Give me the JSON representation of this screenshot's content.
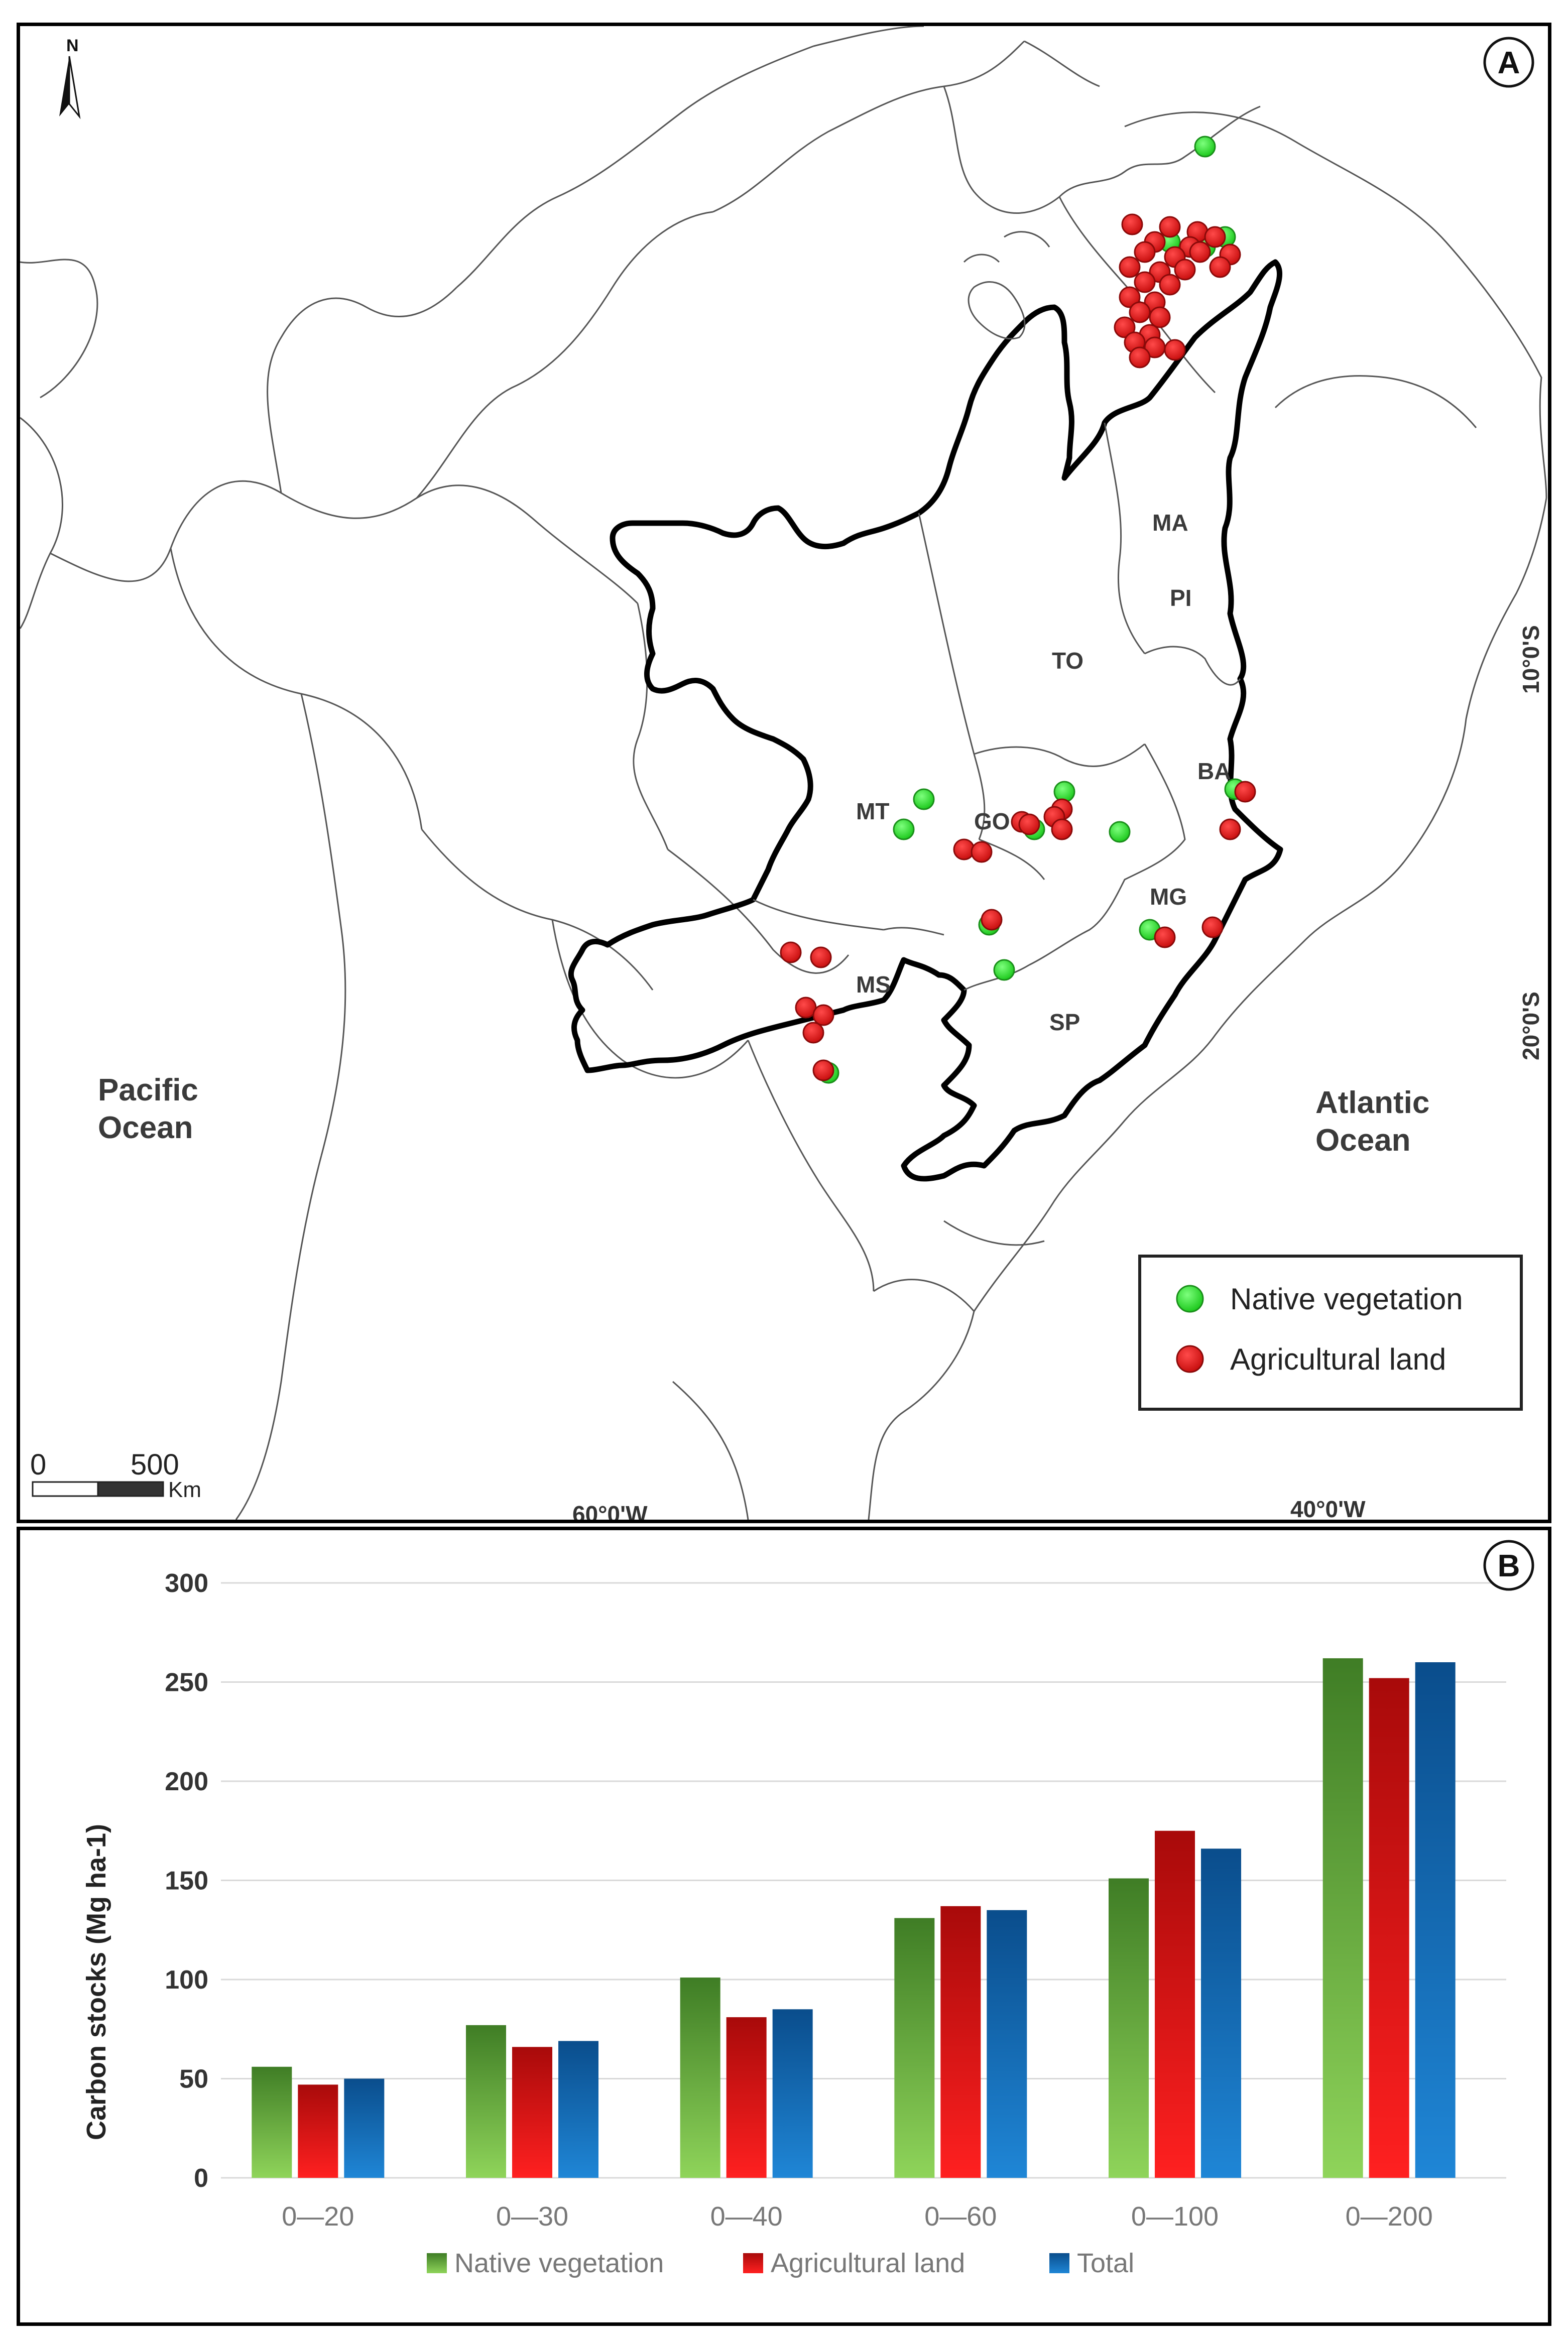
{
  "panel_a": {
    "badge": "A",
    "north_label": "N",
    "states": [
      "MA",
      "PI",
      "TO",
      "BA",
      "MT",
      "GO",
      "MG",
      "MS",
      "SP"
    ],
    "oceans": {
      "pacific": [
        "Pacific",
        "Ocean"
      ],
      "atlantic": [
        "Atlantic",
        "Ocean"
      ]
    },
    "coordinates": {
      "lat_10": "10°0'S",
      "lat_20": "20°0'S",
      "lon_60": "60°0'W",
      "lon_40": "40°0'W"
    },
    "scale": {
      "start": "0",
      "end": "500",
      "unit": "Km"
    },
    "legend": [
      {
        "label": "Native vegetation",
        "color": "#33e833"
      },
      {
        "label": "Agricultural land",
        "color": "#e01a1a"
      }
    ]
  },
  "panel_b": {
    "badge": "B"
  },
  "chart_data": {
    "type": "bar",
    "title": "",
    "xlabel": "",
    "ylabel": "Carbon stocks (Mg ha-1)",
    "ylim": [
      0,
      300
    ],
    "yticks": [
      0,
      50,
      100,
      150,
      200,
      250,
      300
    ],
    "grid": true,
    "legend_position": "bottom",
    "categories": [
      "0—20",
      "0—30",
      "0—40",
      "0—60",
      "0—100",
      "0—200"
    ],
    "series": [
      {
        "name": "Native vegetation",
        "color": "#3f8f2a",
        "values": [
          56,
          77,
          101,
          131,
          151,
          262
        ]
      },
      {
        "name": "Agricultural land",
        "color": "#c81818",
        "values": [
          47,
          66,
          81,
          137,
          175,
          252
        ]
      },
      {
        "name": "Total",
        "color": "#0b5fa5",
        "values": [
          50,
          69,
          85,
          135,
          166,
          260
        ]
      }
    ]
  }
}
